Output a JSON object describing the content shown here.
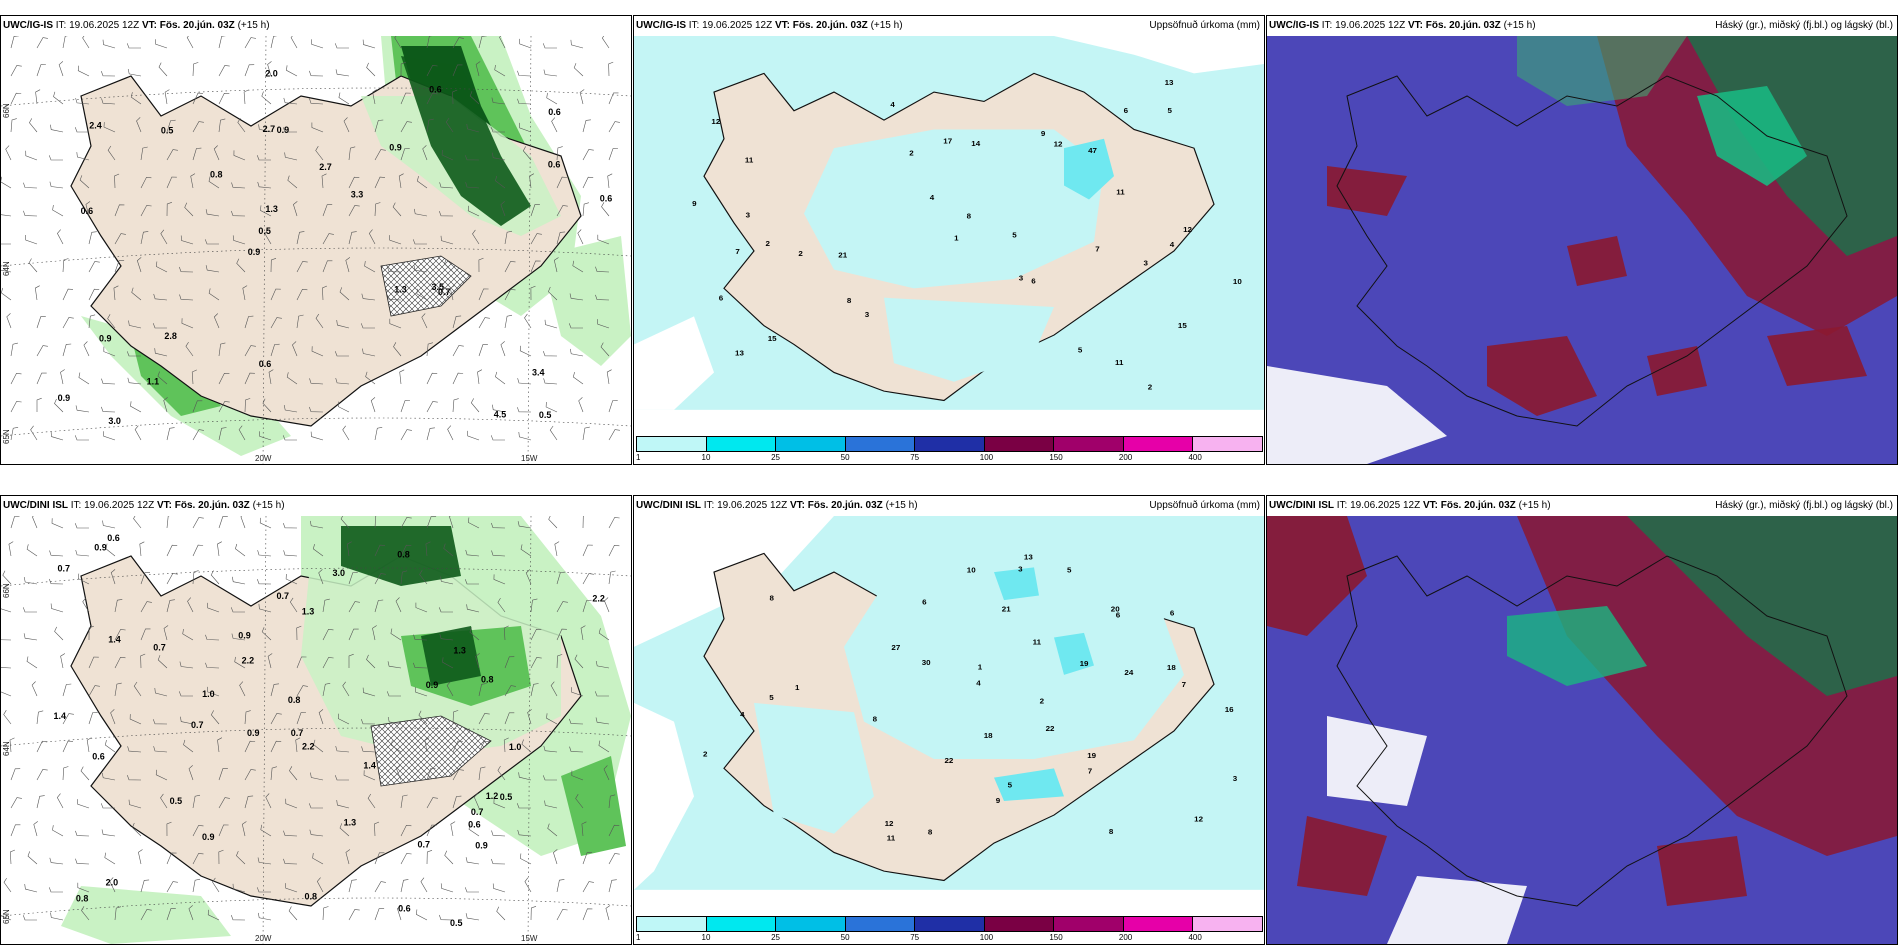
{
  "panels": [
    {
      "id": "p1",
      "model": "UWC/IG-IS",
      "issue": "IT: 19.06.2025 12Z",
      "valid_label": "VT:",
      "valid": "Fös. 20.jún. 03Z",
      "lead": "(+15 h)",
      "right_title": "",
      "lat_labels": [
        "66N",
        "64N",
        "65N"
      ],
      "lon_labels": [
        "20W",
        "15W"
      ],
      "values": [
        "0.5",
        "0.6",
        "0.6",
        "0.9",
        "0.9",
        "3.0",
        "2.7",
        "2.7",
        "0.9",
        "0.8",
        "0.9",
        "1.1",
        "0.9",
        "3.3",
        "0.7",
        "2.4",
        "2.0",
        "0.6",
        "1.3",
        "0.6",
        "0.5",
        "0.6",
        "1.3",
        "0.5",
        "0.6",
        "2.8",
        "4.5",
        "3.4",
        "3.5"
      ]
    },
    {
      "id": "p2",
      "model": "UWC/IG-IS",
      "issue": "IT: 19.06.2025 12Z",
      "valid_label": "VT:",
      "valid": "Fös. 20.jún. 03Z",
      "lead": "(+15 h)",
      "right_title": "Uppsöfnuð úrkoma (mm)",
      "values": [
        "2",
        "2",
        "3",
        "12",
        "15",
        "11",
        "15",
        "21",
        "47",
        "17",
        "12",
        "11",
        "3",
        "4",
        "5",
        "6",
        "7",
        "8",
        "9",
        "13",
        "13",
        "14",
        "11",
        "10",
        "12",
        "3",
        "2",
        "1",
        "4",
        "5",
        "6",
        "7",
        "8",
        "9",
        "2",
        "3",
        "4",
        "5",
        "6"
      ]
    },
    {
      "id": "p3",
      "model": "UWC/IG-IS",
      "issue": "IT: 19.06.2025 12Z",
      "valid_label": "VT:",
      "valid": "Fös. 20.jún. 03Z",
      "lead": "(+15 h)",
      "right_title": "Háský (gr.), miðský (fj.bl.) og lágský (bl.)"
    },
    {
      "id": "p4",
      "model": "UWC/DINI ISL",
      "issue": "IT: 19.06.2025 12Z",
      "valid_label": "VT:",
      "valid": "Fös. 20.jún. 03Z",
      "lead": "(+15 h)",
      "right_title": "",
      "lat_labels": [
        "66N",
        "64N",
        "65N"
      ],
      "lon_labels": [
        "20W",
        "15W"
      ],
      "values": [
        "3.0",
        "1.4",
        "2.2",
        "1.0",
        "0.8",
        "0.6",
        "0.7",
        "0.9",
        "0.9",
        "1.2",
        "0.8",
        "1.0",
        "0.7",
        "0.9",
        "0.7",
        "0.5",
        "0.6",
        "0.8",
        "2.2",
        "1.3",
        "0.5",
        "0.7",
        "0.8",
        "1.4",
        "0.9",
        "2.2",
        "0.7",
        "0.6",
        "0.8",
        "1.3",
        "0.9",
        "0.6",
        "1.3",
        "0.7",
        "0.5",
        "0.9",
        "2.0",
        "1.4",
        "0.7"
      ]
    },
    {
      "id": "p5",
      "model": "UWC/DINI ISL",
      "issue": "IT: 19.06.2025 12Z",
      "valid_label": "VT:",
      "valid": "Fös. 20.jún. 03Z",
      "lead": "(+15 h)",
      "right_title": "Uppsöfnuð úrkoma (mm)",
      "values": [
        "8",
        "5",
        "6",
        "13",
        "21",
        "22",
        "22",
        "18",
        "19",
        "24",
        "27",
        "16",
        "11",
        "30",
        "18",
        "19",
        "12",
        "20",
        "8",
        "10",
        "3",
        "2",
        "1",
        "4",
        "5",
        "6",
        "7",
        "8",
        "9",
        "12",
        "11",
        "7",
        "6",
        "5",
        "4",
        "3",
        "2",
        "1",
        "8"
      ]
    },
    {
      "id": "p6",
      "model": "UWC/DINI ISL",
      "issue": "IT: 19.06.2025 12Z",
      "valid_label": "VT:",
      "valid": "Fös. 20.jún. 03Z",
      "lead": "(+15 h)",
      "right_title": "Háský (gr.), miðský (fj.bl.) og lágský (bl.)"
    }
  ],
  "precip_legend": {
    "labels": [
      "1",
      "10",
      "25",
      "50",
      "75",
      "100",
      "150",
      "200",
      "400"
    ],
    "colors": [
      "#bff7f7",
      "#00e8ef",
      "#00bfe6",
      "#2a73d9",
      "#1f2fa6",
      "#7a0044",
      "#a0006a",
      "#e600a8",
      "#f7b2f0"
    ]
  },
  "colors": {
    "land": "#efe2d4",
    "precip_light": "#c4f5f5",
    "precip_med": "#6fe8f0",
    "green_light": "#c9f2c4",
    "green_mid": "#5fc35a",
    "green_dark": "#0d5a1a",
    "cloud_blue": "#4c47b8",
    "cloud_red": "#8b1830",
    "cloud_green": "#19b781"
  }
}
